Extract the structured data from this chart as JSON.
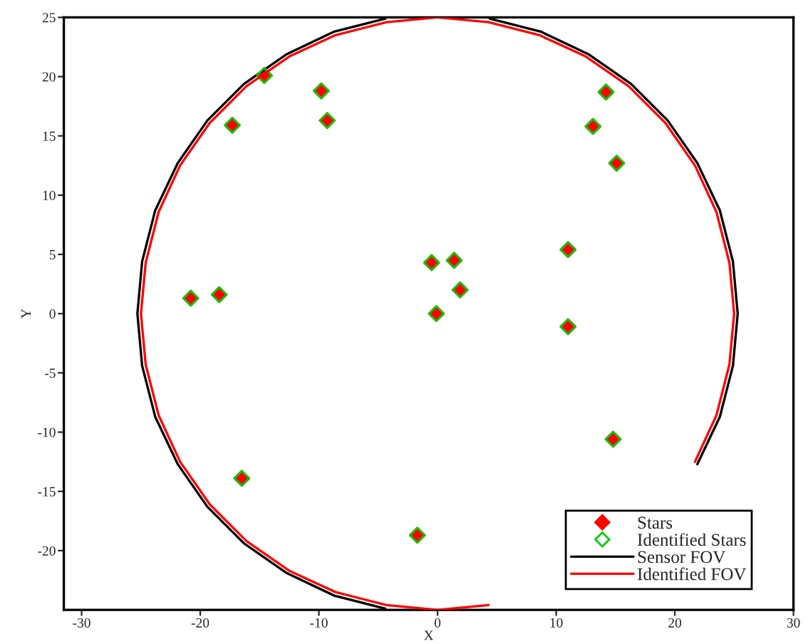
{
  "chart_data": {
    "type": "scatter",
    "xlabel": "X",
    "ylabel": "Y",
    "xlim": [
      -31.5,
      30
    ],
    "xticks": [
      -30,
      -20,
      -10,
      0,
      10,
      20,
      30
    ],
    "ylim": [
      -25,
      25
    ],
    "yticks": [
      -20,
      -15,
      -10,
      -5,
      0,
      5,
      10,
      15,
      20,
      25
    ],
    "grid": false,
    "legend": "bottom right",
    "x": [
      -14.6,
      -9.8,
      -17.3,
      -9.3,
      14.2,
      13.1,
      15.1,
      11.0,
      -0.5,
      1.4,
      1.9,
      -0.1,
      -20.8,
      -18.4,
      11.0,
      14.8,
      -16.5,
      -1.7
    ],
    "series": [
      {
        "name": "Stars",
        "color": "#ff0000",
        "marker": "diamond",
        "values": [
          20.1,
          18.8,
          15.9,
          16.3,
          18.7,
          15.8,
          12.7,
          5.4,
          4.3,
          4.5,
          2.0,
          0.0,
          1.3,
          1.6,
          -1.1,
          -10.6,
          -13.9,
          -18.7
        ]
      },
      {
        "name": "Identified Stars",
        "color": "#00cc00",
        "marker": "diamond",
        "values": [
          20.1,
          18.8,
          15.9,
          16.3,
          18.7,
          15.8,
          12.7,
          5.4,
          4.3,
          4.5,
          2.0,
          0.0,
          1.3,
          1.6,
          -1.1,
          -10.6,
          -13.9,
          -18.7
        ]
      },
      {
        "name": "Sensor FOV",
        "type": "line",
        "color": "#000000",
        "marker": "none",
        "line_style": "solid",
        "x": [
          25.3,
          24.9,
          23.8,
          21.9,
          19.4,
          16.3,
          12.7,
          8.7,
          4.4,
          0,
          -4.4,
          -8.7,
          -12.7,
          -16.3,
          -19.4,
          -21.9,
          -23.8,
          -24.9,
          -25.3,
          -24.9,
          -23.8,
          -21.9,
          -19.4,
          -16.3,
          -12.7,
          -8.7,
          -4.4,
          0,
          4.4,
          8.7,
          12.7,
          16.3,
          19.4,
          21.9,
          23.8,
          24.9,
          25.3
        ],
        "values": [
          0,
          4.4,
          8.7,
          12.7,
          16.3,
          19.4,
          21.9,
          23.8,
          24.9,
          null,
          24.9,
          23.8,
          21.9,
          19.4,
          16.3,
          12.7,
          8.7,
          4.4,
          0,
          -4.4,
          -8.7,
          -12.7,
          -16.3,
          -19.4,
          -21.9,
          -23.8,
          -24.9,
          null,
          null,
          null,
          null,
          null,
          null,
          -12.7,
          -8.7,
          -4.4,
          0
        ]
      },
      {
        "name": "Identified FOV",
        "type": "line",
        "color": "#ff0000",
        "marker": "none",
        "line_style": "solid",
        "x": [
          25,
          24.6,
          23.5,
          21.7,
          19.2,
          16.1,
          12.5,
          8.6,
          4.3,
          0,
          -4.3,
          -8.6,
          -12.5,
          -16.1,
          -19.2,
          -21.7,
          -23.5,
          -24.6,
          -25,
          -24.6,
          -23.5,
          -21.7,
          -19.2,
          -16.1,
          -12.5,
          -8.6,
          -4.3,
          0,
          4.3,
          8.6,
          12.5,
          16.1,
          19.2,
          21.7,
          23.5,
          24.6,
          25
        ],
        "values": [
          0,
          4.3,
          8.6,
          12.5,
          16.1,
          19.2,
          21.7,
          23.5,
          24.6,
          25,
          24.6,
          23.5,
          21.7,
          19.2,
          16.1,
          12.5,
          8.6,
          4.3,
          0,
          -4.3,
          -8.6,
          -12.5,
          -16.1,
          -19.2,
          -21.7,
          -23.5,
          -24.6,
          -25,
          -24.6,
          null,
          null,
          null,
          null,
          -12.5,
          -8.6,
          -4.3,
          0
        ]
      }
    ]
  }
}
